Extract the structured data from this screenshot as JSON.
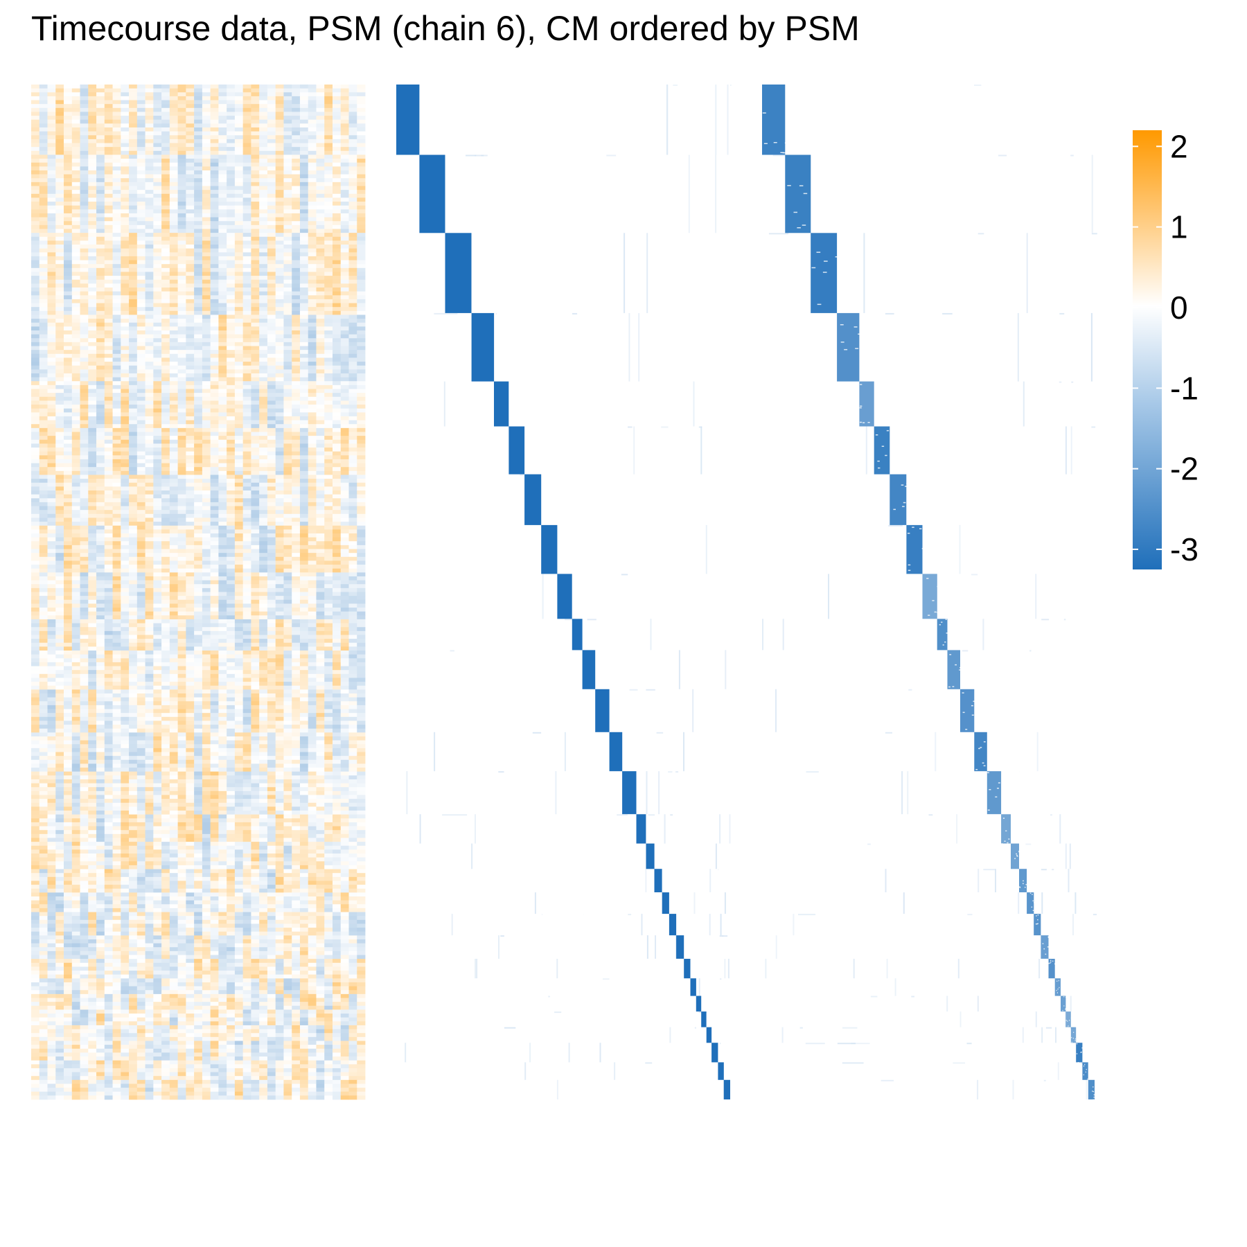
{
  "chart_data": {
    "type": "heatmap",
    "title": "Timecourse data, PSM (chain 6), CM ordered by PSM",
    "panels": [
      {
        "name": "Timecourse data",
        "rows": 1255,
        "columns": 41
      },
      {
        "name": "PSM (chain 6)",
        "ordering": "PSM"
      },
      {
        "name": "CM",
        "ordering": "PSM"
      }
    ],
    "colorbar": {
      "ticks": [
        2,
        1,
        0,
        -1,
        -2,
        -3
      ],
      "range": [
        -3.25,
        2.2
      ],
      "colors": {
        "low": "#1f6fba",
        "mid": "#ffffff",
        "high": "#ff9900"
      }
    },
    "psm_blocks": [
      0.072,
      0.08,
      0.082,
      0.07,
      0.046,
      0.049,
      0.052,
      0.05,
      0.046,
      0.032,
      0.04,
      0.044,
      0.04,
      0.044,
      0.03,
      0.026,
      0.024,
      0.022,
      0.022,
      0.024,
      0.02,
      0.018,
      0.016,
      0.016,
      0.016,
      0.02,
      0.018,
      0.02
    ]
  }
}
